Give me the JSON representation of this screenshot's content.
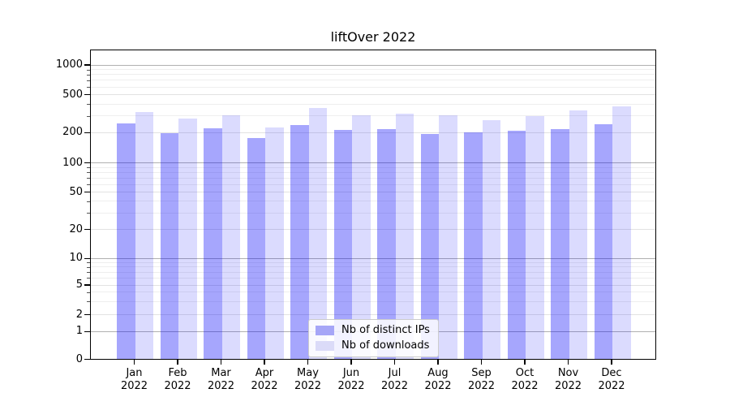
{
  "title": "liftOver 2022",
  "legend": {
    "items": [
      {
        "label": "Nb of distinct IPs",
        "color": "#a6a6f7",
        "fill": "rgba(0,0,250,0.35)"
      },
      {
        "label": "Nb of downloads",
        "color": "#dbdbf8",
        "fill": "rgba(0,0,250,0.14)"
      }
    ]
  },
  "y_axis": {
    "ticks": [
      1000,
      500,
      200,
      100,
      50,
      20,
      10,
      5,
      2,
      1,
      0
    ]
  },
  "x_axis": {
    "year": "2022",
    "months": [
      "Jan",
      "Feb",
      "Mar",
      "Apr",
      "May",
      "Jun",
      "Jul",
      "Aug",
      "Sep",
      "Oct",
      "Nov",
      "Dec"
    ]
  },
  "chart_data": {
    "type": "bar",
    "title": "liftOver 2022",
    "categories": [
      "Jan 2022",
      "Feb 2022",
      "Mar 2022",
      "Apr 2022",
      "May 2022",
      "Jun 2022",
      "Jul 2022",
      "Aug 2022",
      "Sep 2022",
      "Oct 2022",
      "Nov 2022",
      "Dec 2022"
    ],
    "series": [
      {
        "name": "Nb of distinct IPs",
        "color": "#a6a6f7",
        "values": [
          245,
          196,
          221,
          176,
          237,
          211,
          216,
          191,
          200,
          206,
          214,
          242
        ]
      },
      {
        "name": "Nb of downloads",
        "color": "#dbdbf8",
        "values": [
          328,
          277,
          301,
          226,
          356,
          301,
          311,
          303,
          265,
          294,
          336,
          373
        ]
      }
    ],
    "ylabel": "",
    "xlabel": "",
    "yscale": "log-like with zero baseline, ticks at 0,1,2,5,10,20,50,100,200,500,1000",
    "ylim": [
      0,
      1400
    ],
    "grid": "horizontal: gray majors at powers of 10, faint minors between",
    "legend_position": "lower center"
  }
}
